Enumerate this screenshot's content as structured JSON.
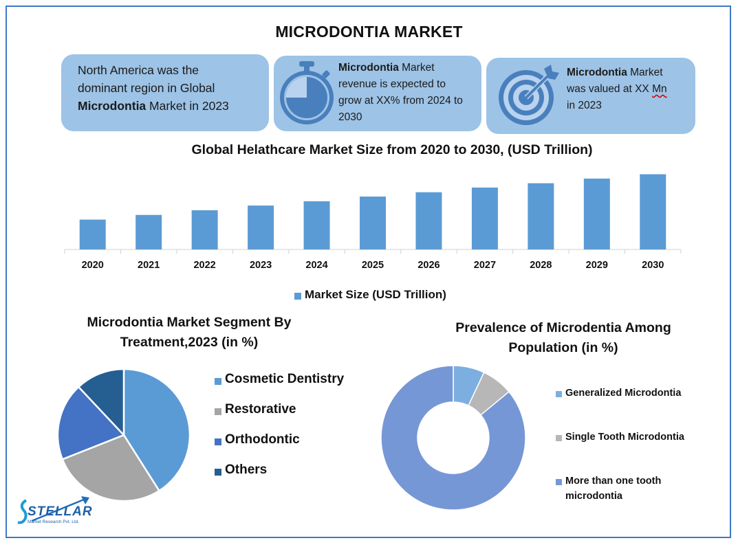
{
  "title": "MICRODONTIA MARKET",
  "cards": {
    "region": {
      "line1": "North America was the",
      "line2": "dominant region in Global",
      "line3_bold": "Microdontia",
      "line3_rest": " Market in 2023"
    },
    "growth": {
      "icon": "stopwatch-icon",
      "bold": "Microdontia",
      "line1_rest": " Market",
      "line2": "revenue is expected to",
      "line3": "grow at XX% from 2024 to",
      "line4": "2030"
    },
    "value": {
      "icon": "target-icon",
      "bold": "Microdontia",
      "line1_rest": " Market",
      "line2_a": "was valued at XX ",
      "line2_b": "Mn",
      "line3": "in 2023"
    }
  },
  "colors": {
    "card_bg": "#9dc3e6",
    "frame": "#3f78c4",
    "bar": "#5b9bd5",
    "icon": "#4a7fbd"
  },
  "chart_data": [
    {
      "type": "bar",
      "title": "Global Helathcare Market Size from 2020 to 2030, (USD Trillion)",
      "categories": [
        "2020",
        "2021",
        "2022",
        "2023",
        "2024",
        "2025",
        "2026",
        "2027",
        "2028",
        "2029",
        "2030"
      ],
      "series": [
        {
          "name": "Market Size (USD Trillion)",
          "values": [
            8.3,
            9.6,
            10.9,
            12.2,
            13.4,
            14.7,
            15.9,
            17.2,
            18.4,
            19.7,
            20.9
          ],
          "color": "#5b9bd5"
        }
      ],
      "ylim": [
        0,
        21
      ],
      "legend": "bottom",
      "grid": false
    },
    {
      "type": "pie",
      "title_line1": "Microdontia Market Segment By",
      "title_line2": "Treatment,2023 (in %)",
      "labels": [
        "Cosmetic Dentistry",
        "Restorative",
        "Orthodontic",
        "Others"
      ],
      "values": [
        41,
        28,
        19,
        12
      ],
      "colors": [
        "#5b9bd5",
        "#a5a5a5",
        "#4472c4",
        "#255e91"
      ],
      "legend": "right"
    },
    {
      "type": "pie",
      "subtype": "donut",
      "title_line1": "Prevalence of Microdentia Among",
      "title_line2": "Population (in %)",
      "labels": [
        "Generalized Microdontia",
        "Single Tooth Microdontia",
        "More than one tooth microdontia"
      ],
      "legend_lines": [
        [
          "Generalized Microdontia"
        ],
        [
          "Single Tooth Microdontia"
        ],
        [
          "More than one tooth",
          "microdontia"
        ]
      ],
      "values": [
        7,
        7,
        86
      ],
      "colors": [
        "#7cafe0",
        "#b7b7b7",
        "#7697d6"
      ],
      "legend": "right"
    }
  ],
  "logo": {
    "name": "STELLAR",
    "tagline": "Market Research Pvt. Ltd."
  }
}
